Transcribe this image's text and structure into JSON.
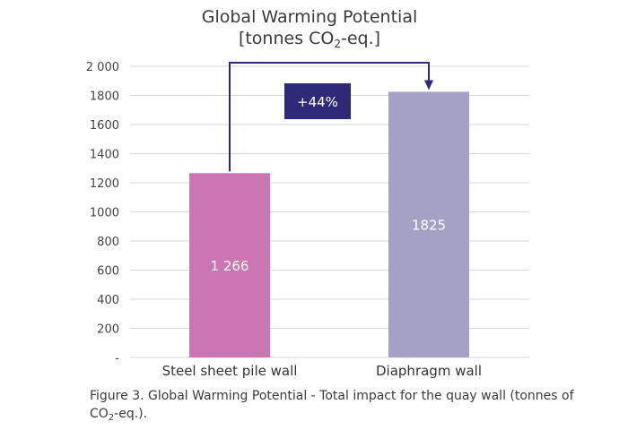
{
  "title_line1": "Global Warming Potential",
  "title_line2_pre": "[tonnes CO",
  "title_line2_sub": "2",
  "title_line2_post": "-eq.]",
  "caption_pre": "Figure 3. Global Warming Potential - Total impact for the quay wall (tonnes of CO",
  "caption_sub": "2",
  "caption_post": "-eq.).",
  "chart_data": {
    "type": "bar",
    "categories": [
      "Steel sheet pile wall",
      "Diaphragm wall"
    ],
    "values": [
      1266,
      1825
    ],
    "data_labels": [
      "1 266",
      "1825"
    ],
    "colors": [
      "#cc75b3",
      "#a5a0c5"
    ],
    "ylim": [
      0,
      2000
    ],
    "yticks": [
      0,
      200,
      400,
      600,
      800,
      1000,
      1200,
      1400,
      1600,
      1800,
      2000
    ],
    "ytick_labels": [
      "-",
      "200",
      "400",
      "600",
      "800",
      "1000",
      "1200",
      "1400",
      "1600",
      "1800",
      "2 000"
    ],
    "grid": true,
    "annotation": {
      "text": "+44%",
      "from": "Steel sheet pile wall",
      "to": "Diaphragm wall",
      "color": "#2e2a78"
    }
  }
}
